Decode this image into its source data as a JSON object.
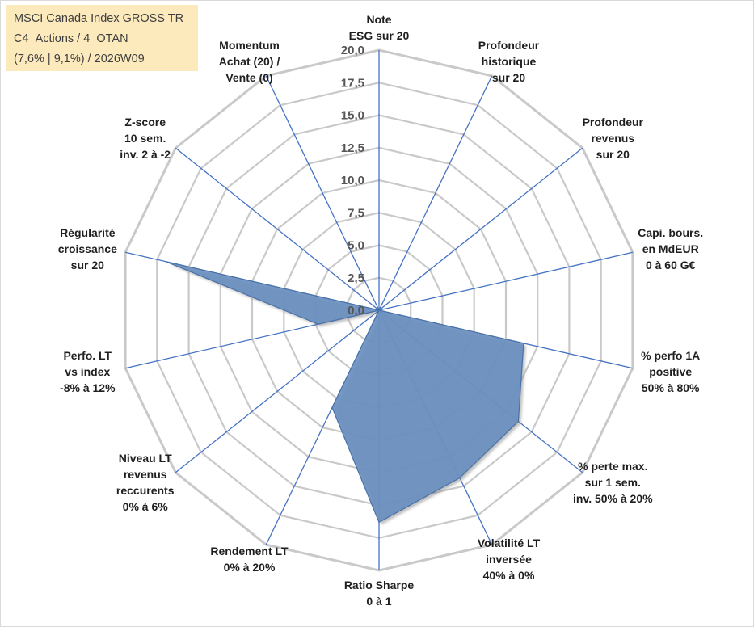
{
  "chart_data": {
    "type": "radar",
    "title_lines": [
      "MSCI Canada Index GROSS TR",
      "C4_Actions / 4_OTAN",
      "(7,6% | 9,1%) / 2026W09"
    ],
    "rlim": [
      0,
      20
    ],
    "ticks": [
      "0,0",
      "2,5",
      "5,0",
      "7,5",
      "10,0",
      "12,5",
      "15,0",
      "17,5",
      "20,0"
    ],
    "axes": [
      {
        "label": [
          "Note",
          "ESG sur 20"
        ],
        "value": 0
      },
      {
        "label": [
          "Profondeur",
          "historique",
          "sur 20"
        ],
        "value": 0
      },
      {
        "label": [
          "Profondeur",
          "revenus",
          "sur 20"
        ],
        "value": 0
      },
      {
        "label": [
          "Capi. bours.",
          "en MdEUR",
          "0 à 60 G€"
        ],
        "value": 0
      },
      {
        "label": [
          "% perfo 1A",
          "positive",
          "50% à 80%"
        ],
        "value": 11.4
      },
      {
        "label": [
          "% perte max.",
          "sur 1 sem.",
          "inv. 50% à 20%"
        ],
        "value": 13.7
      },
      {
        "label": [
          "Volatilité LT",
          "inversée",
          "40% à 0%"
        ],
        "value": 14.3
      },
      {
        "label": [
          "Ratio Sharpe",
          "0 à 1"
        ],
        "value": 16.3
      },
      {
        "label": [
          "Rendement LT",
          "0% à 20%"
        ],
        "value": 8.3
      },
      {
        "label": [
          "Niveau LT",
          "revenus",
          "reccurents",
          "0% à 6%"
        ],
        "value": 0
      },
      {
        "label": [
          "Perfo. LT",
          "vs index",
          "-8% à 12%"
        ],
        "value": 4.8
      },
      {
        "label": [
          "Régularité",
          "croissance",
          "sur 20"
        ],
        "value": 16.8
      },
      {
        "label": [
          "Z-score",
          "10 sem.",
          "inv. 2 à -2"
        ],
        "value": 0
      },
      {
        "label": [
          "Momentum",
          "Achat (20) /",
          "Vente (0)"
        ],
        "value": 0
      }
    ],
    "colors": {
      "fill": "#6a8fc0",
      "stroke": "#4a72a8",
      "axis": "#4472c4",
      "grid": "#c9c9c9",
      "shadow": "#8a8a8a"
    }
  }
}
